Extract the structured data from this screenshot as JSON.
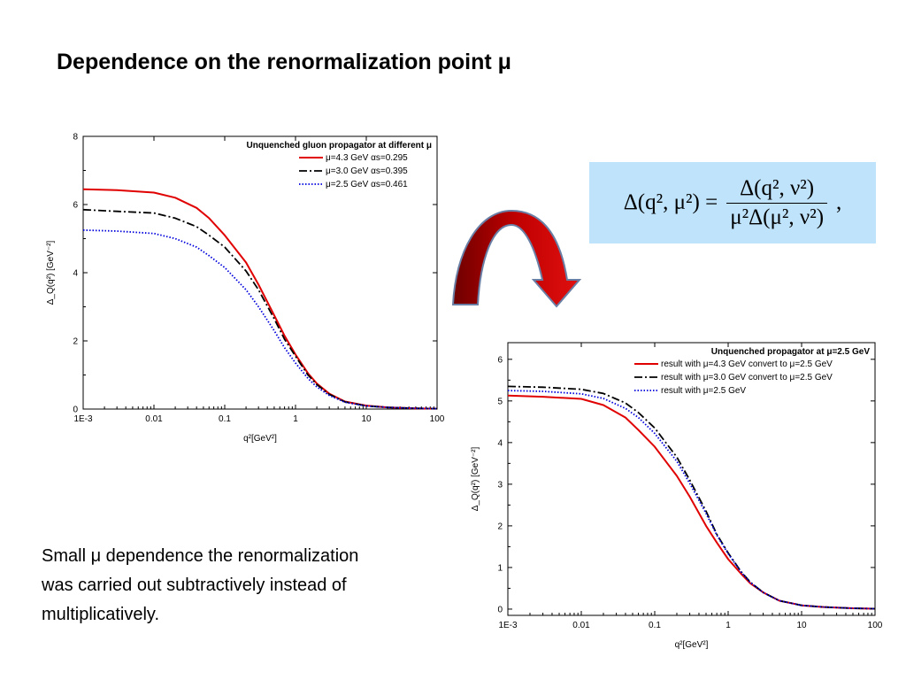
{
  "slide": {
    "title": "Dependence on the renormalization point μ",
    "formula": "Δ(q², μ²) = Δ(q², ν²) / μ²Δ(μ², ν²) ,",
    "formula_lhs": "Δ(q², μ²) =",
    "formula_num": "Δ(q², ν²)",
    "formula_den": "μ²Δ(μ², ν²)",
    "formula_tail": ",",
    "caption_lines": [
      "Small μ  dependence the renormalization",
      "was  carried out subtractively instead of",
      "multiplicatively."
    ],
    "arrow_icon": "curved-arrow-icon",
    "arrow_color": "#c00000"
  },
  "chart_data": [
    {
      "type": "line",
      "legend_title": "Unquenched  gluon propagator at different μ",
      "xlabel": "q²[GeV²]",
      "ylabel": "Δ_Q(q²) [GeV⁻²]",
      "xscale": "log",
      "xlim": [
        0.001,
        100
      ],
      "ylim": [
        0,
        8
      ],
      "xticks": [
        0.001,
        0.01,
        0.1,
        1,
        10,
        100
      ],
      "xtick_labels": [
        "1E-3",
        "0.01",
        "0.1",
        "1",
        "10",
        "100"
      ],
      "yticks": [
        0,
        2,
        4,
        6,
        8
      ],
      "ytick_labels": [
        "0",
        "2",
        "4",
        "6",
        "8"
      ],
      "legend_position": "top-right",
      "grid": false,
      "series": [
        {
          "name": "μ=4.3 GeV αs=0.295",
          "color": "#e00000",
          "style": "solid",
          "x": [
            0.001,
            0.003,
            0.01,
            0.02,
            0.04,
            0.06,
            0.1,
            0.2,
            0.3,
            0.5,
            0.7,
            1,
            1.5,
            2,
            3,
            5,
            10,
            20,
            50,
            100
          ],
          "y": [
            6.45,
            6.42,
            6.35,
            6.2,
            5.9,
            5.6,
            5.1,
            4.3,
            3.65,
            2.75,
            2.15,
            1.6,
            1.05,
            0.75,
            0.45,
            0.22,
            0.1,
            0.05,
            0.02,
            0.01
          ]
        },
        {
          "name": "μ=3.0 GeV αs=0.395",
          "color": "#000000",
          "style": "dashdot",
          "x": [
            0.001,
            0.003,
            0.01,
            0.02,
            0.04,
            0.06,
            0.1,
            0.2,
            0.3,
            0.5,
            0.7,
            1,
            1.5,
            2,
            3,
            5,
            10,
            20,
            50,
            100
          ],
          "y": [
            5.85,
            5.8,
            5.75,
            5.6,
            5.35,
            5.1,
            4.75,
            4.05,
            3.5,
            2.65,
            2.05,
            1.55,
            1.0,
            0.72,
            0.43,
            0.21,
            0.09,
            0.05,
            0.02,
            0.01
          ]
        },
        {
          "name": "μ=2.5 GeV αs=0.461",
          "color": "#0000dd",
          "style": "dotted",
          "x": [
            0.001,
            0.003,
            0.01,
            0.02,
            0.04,
            0.06,
            0.1,
            0.2,
            0.3,
            0.5,
            0.7,
            1,
            1.5,
            2,
            3,
            5,
            10,
            20,
            50,
            100
          ],
          "y": [
            5.25,
            5.22,
            5.15,
            5.0,
            4.75,
            4.5,
            4.15,
            3.5,
            3.0,
            2.3,
            1.8,
            1.35,
            0.9,
            0.65,
            0.4,
            0.2,
            0.09,
            0.05,
            0.02,
            0.01
          ]
        }
      ]
    },
    {
      "type": "line",
      "legend_title": "Unquenched propagator at μ=2.5 GeV",
      "xlabel": "q²[GeV²]",
      "ylabel": "Δ_Q(q²) [GeV⁻²]",
      "xscale": "log",
      "xlim": [
        0.001,
        100
      ],
      "ylim": [
        -0.15,
        6.4
      ],
      "xticks": [
        0.001,
        0.01,
        0.1,
        1,
        10,
        100
      ],
      "xtick_labels": [
        "1E-3",
        "0.01",
        "0.1",
        "1",
        "10",
        "100"
      ],
      "yticks": [
        0,
        1,
        2,
        3,
        4,
        5,
        6
      ],
      "ytick_labels": [
        "0",
        "1",
        "2",
        "3",
        "4",
        "5",
        "6"
      ],
      "legend_position": "top-right",
      "grid": false,
      "series": [
        {
          "name": "result with μ=4.3 GeV convert to μ=2.5 GeV",
          "color": "#e00000",
          "style": "solid",
          "x": [
            0.001,
            0.003,
            0.01,
            0.02,
            0.04,
            0.06,
            0.1,
            0.2,
            0.3,
            0.5,
            0.7,
            1,
            1.5,
            2,
            3,
            5,
            10,
            20,
            50,
            100
          ],
          "y": [
            5.13,
            5.1,
            5.05,
            4.9,
            4.6,
            4.3,
            3.9,
            3.2,
            2.7,
            2.0,
            1.6,
            1.2,
            0.85,
            0.62,
            0.4,
            0.2,
            0.09,
            0.05,
            0.02,
            0.01
          ]
        },
        {
          "name": "result with μ=3.0 GeV convert to μ=2.5 GeV",
          "color": "#000000",
          "style": "dashdot",
          "x": [
            0.001,
            0.003,
            0.01,
            0.02,
            0.04,
            0.06,
            0.1,
            0.2,
            0.3,
            0.5,
            0.7,
            1,
            1.5,
            2,
            3,
            5,
            10,
            20,
            50,
            100
          ],
          "y": [
            5.35,
            5.33,
            5.28,
            5.18,
            4.95,
            4.72,
            4.35,
            3.65,
            3.1,
            2.35,
            1.8,
            1.35,
            0.9,
            0.65,
            0.4,
            0.2,
            0.09,
            0.05,
            0.02,
            0.01
          ]
        },
        {
          "name": "result with μ=2.5 GeV",
          "color": "#0000dd",
          "style": "dotted",
          "x": [
            0.001,
            0.003,
            0.01,
            0.02,
            0.04,
            0.06,
            0.1,
            0.2,
            0.3,
            0.5,
            0.7,
            1,
            1.5,
            2,
            3,
            5,
            10,
            20,
            50,
            100
          ],
          "y": [
            5.25,
            5.23,
            5.17,
            5.06,
            4.82,
            4.6,
            4.22,
            3.55,
            3.02,
            2.3,
            1.78,
            1.33,
            0.89,
            0.64,
            0.4,
            0.2,
            0.09,
            0.05,
            0.02,
            0.01
          ]
        }
      ]
    }
  ]
}
